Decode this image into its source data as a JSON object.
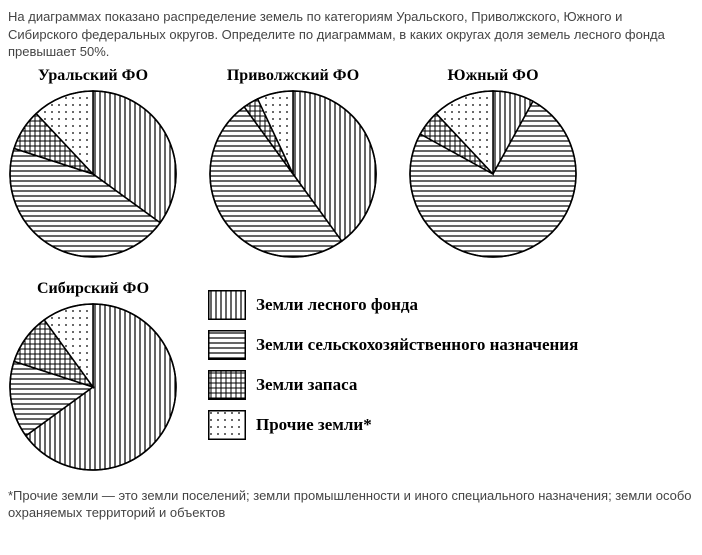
{
  "intro_text": "На диаграммах показано распределение земель по категориям Уральского, Приволжского, Южного и Сибирского федеральных округов. Определите\nпо диаграммам, в каких округах доля земель лесного фонда превышает 50%.",
  "footnote_text": "*Прочие земли — это земли поселений; земли промышленности и иного специального назначения; земли особо охраняемых территорий и объектов",
  "pie_radius": 83,
  "pie_border_color": "#000000",
  "background_color": "#ffffff",
  "title_font_family": "Times New Roman, serif",
  "title_fontsize": 16,
  "body_color": "#444444",
  "categories": [
    {
      "key": "forest",
      "label": "Земли лесного фонда",
      "pattern": "vertical"
    },
    {
      "key": "agri",
      "label": "Земли сельскохозяйственного назначения",
      "pattern": "horizontal"
    },
    {
      "key": "reserve",
      "label": "Земли запаса",
      "pattern": "crosshatch"
    },
    {
      "key": "other",
      "label": "Прочие земли*",
      "pattern": "dots"
    }
  ],
  "legend_swatch": {
    "width": 36,
    "height": 28
  },
  "pies": [
    {
      "title": "Уральский ФО",
      "slices": [
        {
          "category": "forest",
          "value": 35
        },
        {
          "category": "agri",
          "value": 45
        },
        {
          "category": "reserve",
          "value": 8
        },
        {
          "category": "other",
          "value": 12
        }
      ]
    },
    {
      "title": "Приволжский ФО",
      "slices": [
        {
          "category": "forest",
          "value": 40
        },
        {
          "category": "agri",
          "value": 50
        },
        {
          "category": "reserve",
          "value": 3
        },
        {
          "category": "other",
          "value": 7
        }
      ]
    },
    {
      "title": "Южный ФО",
      "slices": [
        {
          "category": "forest",
          "value": 8
        },
        {
          "category": "agri",
          "value": 75
        },
        {
          "category": "reserve",
          "value": 5
        },
        {
          "category": "other",
          "value": 12
        }
      ]
    },
    {
      "title": "Сибирский ФО",
      "slices": [
        {
          "category": "forest",
          "value": 65
        },
        {
          "category": "agri",
          "value": 15
        },
        {
          "category": "reserve",
          "value": 10
        },
        {
          "category": "other",
          "value": 10
        }
      ]
    }
  ]
}
